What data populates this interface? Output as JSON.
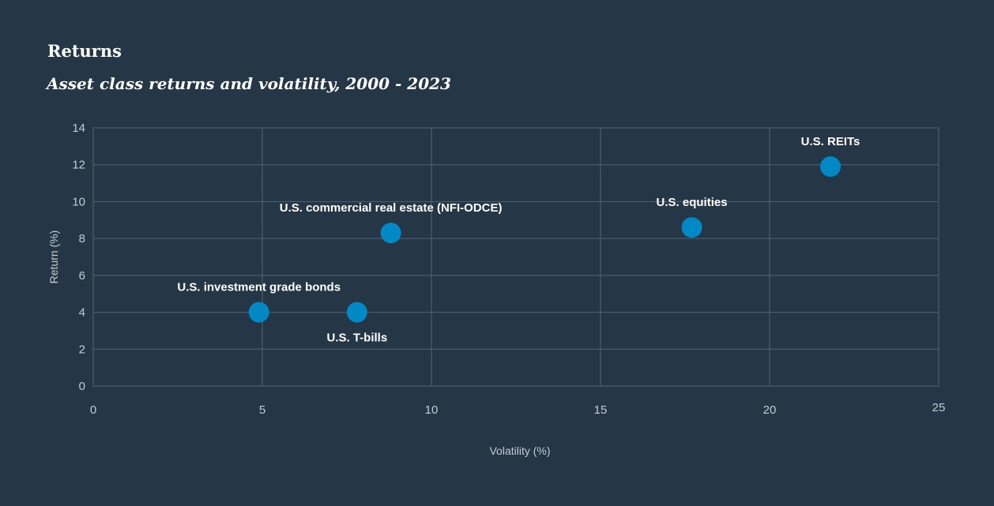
{
  "chart_data": {
    "type": "scatter",
    "title": "Returns",
    "subtitle": "Asset class returns and volatility, 2000 - 2023",
    "xlabel": "Volatility (%)",
    "ylabel": "Return (%)",
    "xlim": [
      0,
      25
    ],
    "ylim": [
      0,
      14
    ],
    "x_ticks": [
      0,
      5,
      10,
      15,
      20,
      25
    ],
    "y_ticks": [
      0,
      2,
      4,
      6,
      8,
      10,
      12,
      14
    ],
    "grid": true,
    "points": [
      {
        "label": "U.S. investment grade bonds",
        "x": 4.9,
        "y": 4.0,
        "label_position": "above"
      },
      {
        "label": "U.S. T-bills",
        "x": 7.8,
        "y": 4.0,
        "label_position": "below"
      },
      {
        "label": "U.S. commercial real estate (NFI-ODCE)",
        "x": 8.8,
        "y": 8.3,
        "label_position": "above"
      },
      {
        "label": "U.S. equities",
        "x": 17.7,
        "y": 8.6,
        "label_position": "above"
      },
      {
        "label": "U.S. REITs",
        "x": 21.8,
        "y": 11.9,
        "label_position": "above"
      }
    ]
  },
  "colors": {
    "background": "#253746",
    "marker": "#0089c4",
    "gridline": "#536373",
    "text": "#ffffff",
    "tick_text": "#c4cbd2"
  }
}
